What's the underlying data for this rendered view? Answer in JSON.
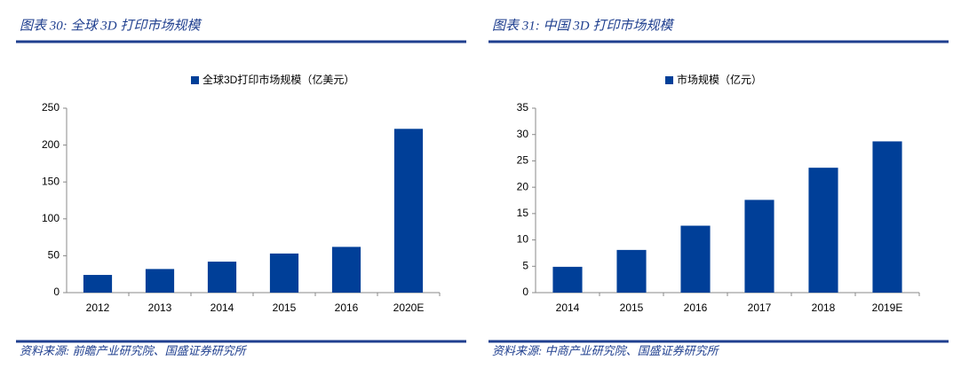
{
  "chart_data": [
    {
      "type": "bar",
      "title": "图表 30:  全球 3D 打印市场规模",
      "source": "资料来源:  前瞻产业研究院、国盛证券研究所",
      "categories": [
        "2012",
        "2013",
        "2014",
        "2015",
        "2016",
        "2020E"
      ],
      "series": [
        {
          "name": "全球3D打印市场规模（亿美元）",
          "color": "#003f98",
          "values": [
            24,
            32,
            42,
            53,
            62,
            222
          ]
        }
      ],
      "ylim": [
        0,
        250
      ],
      "yticks": [
        0,
        50,
        100,
        150,
        200,
        250
      ]
    },
    {
      "type": "bar",
      "title": "图表 31:  中国 3D 打印市场规模",
      "source": "资料来源:  中商产业研究院、国盛证券研究所",
      "categories": [
        "2014",
        "2015",
        "2016",
        "2017",
        "2018",
        "2019E"
      ],
      "series": [
        {
          "name": "市场规模（亿元）",
          "color": "#003f98",
          "values": [
            4.9,
            8.1,
            12.7,
            17.6,
            23.7,
            28.7
          ]
        }
      ],
      "ylim": [
        0,
        35
      ],
      "yticks": [
        0,
        5,
        10,
        15,
        20,
        25,
        30,
        35
      ]
    }
  ]
}
